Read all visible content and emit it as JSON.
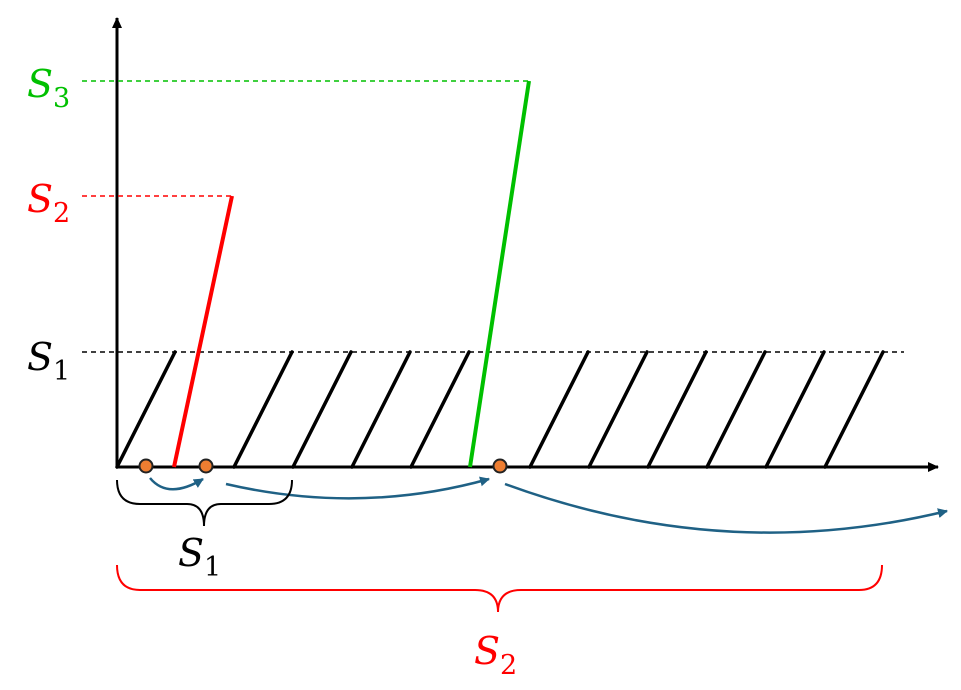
{
  "labels": {
    "s1_axis": {
      "letter": "S",
      "sub": "1",
      "color": "#000000"
    },
    "s2_axis": {
      "letter": "S",
      "sub": "2",
      "color": "#ff0000"
    },
    "s3_axis": {
      "letter": "S",
      "sub": "3",
      "color": "#00c000"
    },
    "s1_brace": {
      "letter": "S",
      "sub": "1",
      "color": "#000000"
    },
    "s2_brace": {
      "letter": "S",
      "sub": "2",
      "color": "#ff0000"
    }
  },
  "colors": {
    "axis": "#000000",
    "hatch": "#000000",
    "red_line": "#ff0000",
    "green_line": "#00c000",
    "arrow": "#1f6185",
    "dot_fill": "#ed7d31",
    "dot_stroke": "#222222"
  }
}
